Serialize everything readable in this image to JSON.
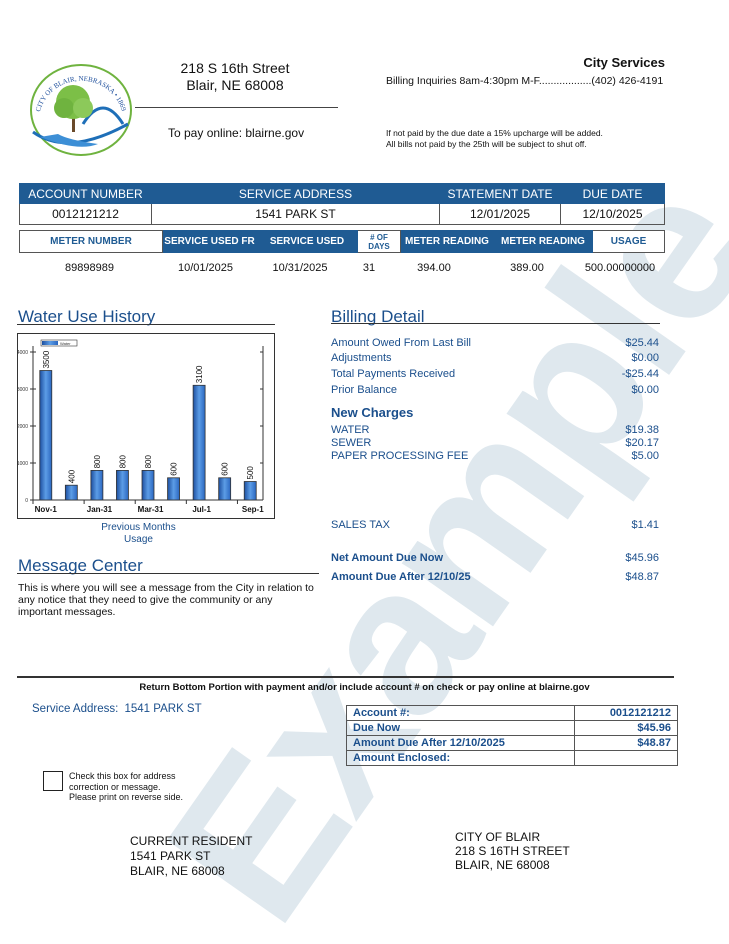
{
  "watermark": "Example",
  "logo": {
    "text": "CITY OF BLAIR, NEBRASKA • 1869",
    "colors": {
      "tree": "#6fb33f",
      "water": "#1e6fb8"
    }
  },
  "header": {
    "address_line1": "218 S 16th Street",
    "address_line2": "Blair, NE 68008",
    "pay_online": "To pay online: blairne.gov",
    "city_services": "City Services",
    "billing_inquiries": "Billing Inquiries 8am-4:30pm M-F..................(402) 426-4191",
    "notice1": "If not paid by the due date a 15% upcharge will be added.",
    "notice2": "All bills not paid by the 25th will be subject to shut off."
  },
  "account_table": {
    "headers": [
      "ACCOUNT NUMBER",
      "SERVICE ADDRESS",
      "STATEMENT DATE",
      "DUE DATE"
    ],
    "values": [
      "0012121212",
      "1541 PARK ST",
      "12/01/2025",
      "12/10/2025"
    ]
  },
  "meter_table": {
    "headers": [
      "METER NUMBER",
      "SERVICE USED FR",
      "SERVICE USED",
      "# OF DAYS",
      "METER READING",
      "METER READING",
      "USAGE"
    ],
    "values": [
      "89898989",
      "10/01/2025",
      "10/31/2025",
      "31",
      "394.00",
      "389.00",
      "500.00000000"
    ]
  },
  "water_use": {
    "title": "Water Use History",
    "caption1": "Previous Months",
    "caption2": "Usage"
  },
  "chart_data": {
    "type": "bar",
    "legend": [
      "Water"
    ],
    "values": [
      3500,
      400,
      800,
      800,
      800,
      600,
      3100,
      600,
      500
    ],
    "data_labels": [
      "3500",
      "400",
      "800",
      "800",
      "800",
      "600",
      "3100",
      "600",
      "500"
    ],
    "x_tick_labels": [
      "Nov-1",
      "Jan-31",
      "Mar-31",
      "Jul-1",
      "Sep-1"
    ],
    "y_ticks": [
      "0",
      "1000",
      "2000",
      "3000",
      "4000"
    ],
    "ylim": [
      0,
      4000
    ],
    "xlabel": "Previous Months Usage",
    "color": "#2f74c8"
  },
  "billing": {
    "title": "Billing Detail",
    "rows": [
      {
        "label": "Amount Owed From Last Bill",
        "value": "$25.44"
      },
      {
        "label": "Adjustments",
        "value": "$0.00"
      },
      {
        "label": "Total Payments Received",
        "value": "-$25.44"
      },
      {
        "label": "Prior Balance",
        "value": "$0.00"
      }
    ],
    "new_charges_title": "New Charges",
    "charges": [
      {
        "label": "WATER",
        "value": "$19.38"
      },
      {
        "label": "SEWER",
        "value": "$20.17"
      },
      {
        "label": "PAPER PROCESSING FEE",
        "value": "$5.00"
      }
    ],
    "sales_tax": {
      "label": "SALES TAX",
      "value": "$1.41"
    },
    "net_due": {
      "label": "Net Amount Due Now",
      "value": "$45.96"
    },
    "due_after": {
      "label": "Amount Due After 12/10/25",
      "value": "$48.87"
    }
  },
  "message_center": {
    "title": "Message Center",
    "text": "This is where you will see a message from the City in relation to any notice that they need to give the community or any important messages."
  },
  "stub": {
    "return_note": "Return Bottom Portion with payment and/or include account # on check or pay online at blairne.gov",
    "service_address_label": "Service Address:",
    "service_address": "1541 PARK ST",
    "rows": [
      {
        "label": "Account #:",
        "value": "0012121212"
      },
      {
        "label": "Due Now",
        "value": "$45.96"
      },
      {
        "label": "Amount Due After 12/10/2025",
        "value": "$48.87"
      },
      {
        "label": "Amount Enclosed:",
        "value": ""
      }
    ],
    "checkbox_text1": "Check this box for address",
    "checkbox_text2": "correction or message.",
    "checkbox_text3": "Please print on reverse side.",
    "to_name": "CURRENT RESIDENT",
    "to_line1": "1541 PARK ST",
    "to_line2": "BLAIR, NE 68008",
    "from_name": "CITY OF BLAIR",
    "from_line1": "218 S 16TH STREET",
    "from_line2": "BLAIR, NE 68008"
  },
  "colors": {
    "header_blue": "#1f5b93",
    "text_blue": "#1b4f8c"
  }
}
